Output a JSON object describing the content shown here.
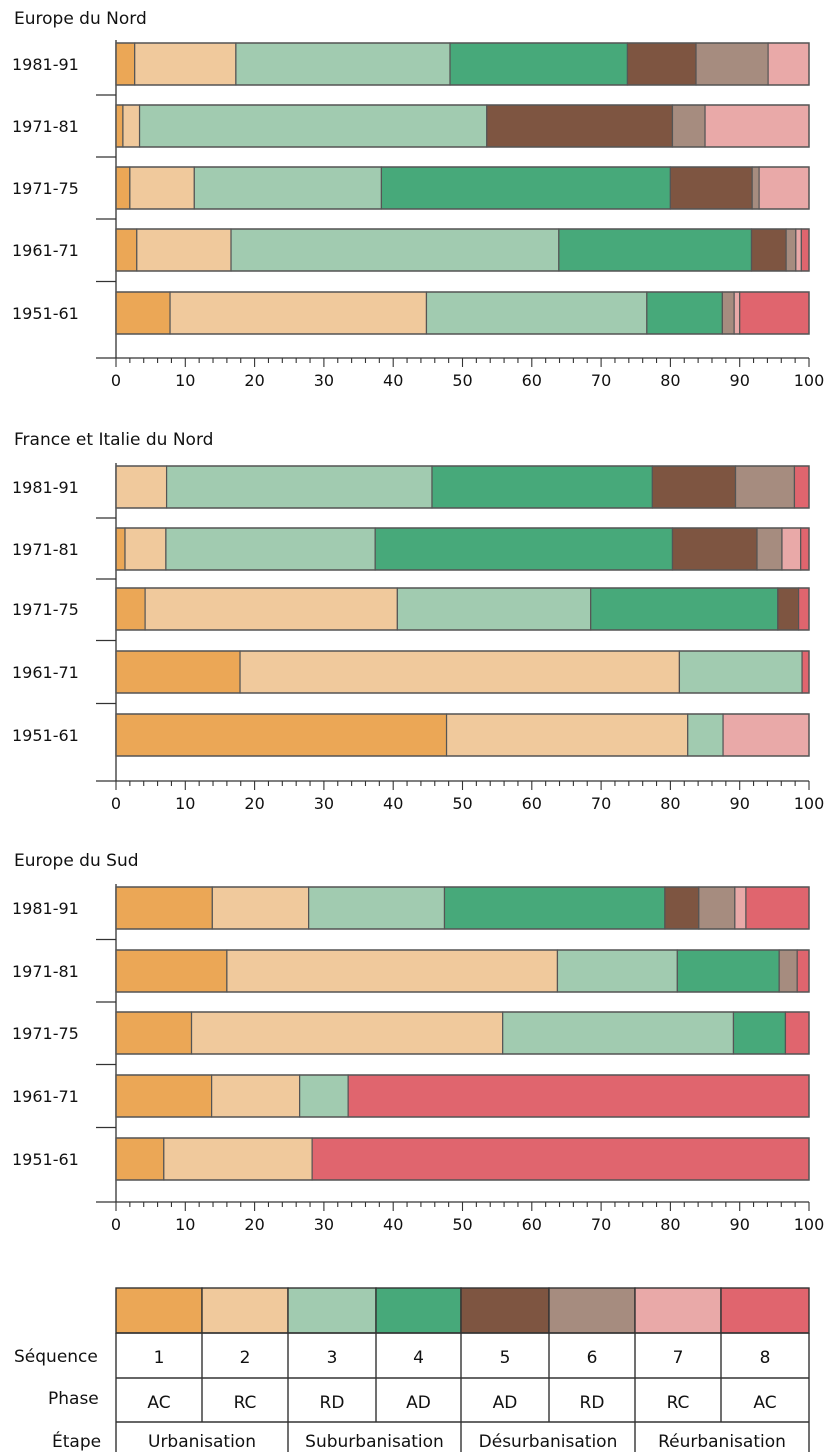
{
  "chart_data": [
    {
      "type": "bar",
      "stacked": true,
      "orientation": "horizontal",
      "title": "Europe du Nord",
      "categories": [
        "1981-91",
        "1971-81",
        "1971-75",
        "1961-71",
        "1951-61"
      ],
      "xlim": [
        0,
        100
      ],
      "xticks": [
        "0",
        "10",
        "20",
        "30",
        "40",
        "50",
        "60",
        "70",
        "80",
        "90",
        "100"
      ],
      "series": [
        {
          "name": "1",
          "values": [
            2.7,
            1.0,
            2.0,
            3.0,
            7.8
          ]
        },
        {
          "name": "2",
          "values": [
            14.6,
            2.4,
            9.3,
            13.6,
            37.0
          ]
        },
        {
          "name": "3",
          "values": [
            30.9,
            50.1,
            27.0,
            47.3,
            31.8
          ]
        },
        {
          "name": "4",
          "values": [
            25.6,
            0.0,
            41.7,
            27.8,
            10.9
          ]
        },
        {
          "name": "5",
          "values": [
            9.9,
            26.8,
            11.8,
            5.0,
            0.0
          ]
        },
        {
          "name": "6",
          "values": [
            10.4,
            4.7,
            1.0,
            1.4,
            1.7
          ]
        },
        {
          "name": "7",
          "values": [
            5.9,
            15.0,
            7.2,
            0.8,
            0.8
          ]
        },
        {
          "name": "8",
          "values": [
            0.0,
            0.0,
            0.0,
            1.1,
            10.0
          ]
        }
      ]
    },
    {
      "type": "bar",
      "stacked": true,
      "orientation": "horizontal",
      "title": "France et Italie du Nord",
      "categories": [
        "1981-91",
        "1971-81",
        "1971-75",
        "1961-71",
        "1951-61"
      ],
      "xlim": [
        0,
        100
      ],
      "xticks": [
        "0",
        "10",
        "20",
        "30",
        "40",
        "50",
        "60",
        "70",
        "80",
        "90",
        "100"
      ],
      "series": [
        {
          "name": "1",
          "values": [
            0.0,
            1.3,
            4.2,
            17.9,
            47.7
          ]
        },
        {
          "name": "2",
          "values": [
            7.3,
            5.9,
            36.4,
            63.4,
            34.8
          ]
        },
        {
          "name": "3",
          "values": [
            38.3,
            30.2,
            27.9,
            17.7,
            5.1
          ]
        },
        {
          "name": "4",
          "values": [
            31.8,
            42.9,
            27.0,
            0.0,
            0.0
          ]
        },
        {
          "name": "5",
          "values": [
            12.0,
            12.2,
            3.0,
            0.0,
            0.0
          ]
        },
        {
          "name": "6",
          "values": [
            8.5,
            3.6,
            0.0,
            0.0,
            0.0
          ]
        },
        {
          "name": "7",
          "values": [
            0.0,
            2.7,
            0.0,
            0.0,
            12.4
          ]
        },
        {
          "name": "8",
          "values": [
            2.1,
            1.2,
            1.5,
            1.0,
            0.0
          ]
        }
      ]
    },
    {
      "type": "bar",
      "stacked": true,
      "orientation": "horizontal",
      "title": "Europe du Sud",
      "categories": [
        "1981-91",
        "1971-81",
        "1971-75",
        "1961-71",
        "1951-61"
      ],
      "xlim": [
        0,
        100
      ],
      "xticks": [
        "0",
        "10",
        "20",
        "30",
        "40",
        "50",
        "60",
        "70",
        "80",
        "90",
        "100"
      ],
      "series": [
        {
          "name": "1",
          "values": [
            13.9,
            16.0,
            10.9,
            13.8,
            6.9
          ]
        },
        {
          "name": "2",
          "values": [
            13.9,
            47.7,
            44.9,
            12.7,
            21.4
          ]
        },
        {
          "name": "3",
          "values": [
            19.6,
            17.3,
            33.3,
            7.0,
            0.0
          ]
        },
        {
          "name": "4",
          "values": [
            31.8,
            14.7,
            7.5,
            0.0,
            0.0
          ]
        },
        {
          "name": "5",
          "values": [
            4.9,
            0.0,
            0.0,
            0.0,
            0.0
          ]
        },
        {
          "name": "6",
          "values": [
            5.2,
            2.6,
            0.0,
            0.0,
            0.0
          ]
        },
        {
          "name": "7",
          "values": [
            1.6,
            0.0,
            0.0,
            0.0,
            0.0
          ]
        },
        {
          "name": "8",
          "values": [
            9.1,
            1.7,
            3.4,
            66.5,
            71.7
          ]
        }
      ]
    }
  ],
  "colors": [
    "#eba756",
    "#f0c99c",
    "#a1cbb0",
    "#47a97a",
    "#7e5541",
    "#a68c7f",
    "#e9a9a8",
    "#e0656e"
  ],
  "legend": {
    "row_labels": {
      "sequence": "Séquence",
      "phase": "Phase",
      "etape": "Étape"
    },
    "sequence": [
      "1",
      "2",
      "3",
      "4",
      "5",
      "6",
      "7",
      "8"
    ],
    "phase": [
      "AC",
      "RC",
      "RD",
      "AD",
      "AD",
      "RD",
      "RC",
      "AC"
    ],
    "etape": [
      "Urbanisation",
      "Suburbanisation",
      "Désurbanisation",
      "Réurbanisation"
    ]
  }
}
